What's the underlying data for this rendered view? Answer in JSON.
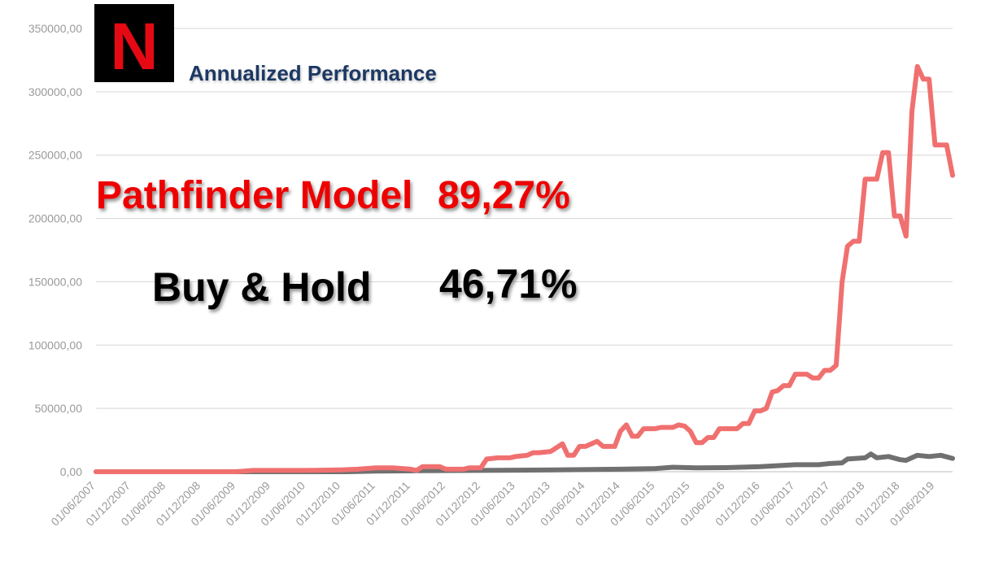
{
  "chart_data": {
    "type": "line",
    "title": "Annualized Performance",
    "ylim": [
      0,
      350000
    ],
    "yticks": [
      "0,00",
      "50000,00",
      "100000,00",
      "150000,00",
      "200000,00",
      "250000,00",
      "300000,00",
      "350000,00"
    ],
    "xticks": [
      "01/06/2007",
      "01/12/2007",
      "01/06/2008",
      "01/12/2008",
      "01/06/2009",
      "01/12/2009",
      "01/06/2010",
      "01/12/2010",
      "01/06/2011",
      "01/12/2011",
      "01/06/2012",
      "01/12/2012",
      "01/06/2013",
      "01/12/2013",
      "01/06/2014",
      "01/12/2014",
      "01/06/2015",
      "01/12/2015",
      "01/06/2016",
      "01/12/2016",
      "01/06/2017",
      "01/12/2017",
      "01/06/2018",
      "01/12/2018",
      "01/06/2019"
    ],
    "grid": true,
    "series": [
      {
        "name": "Pathfinder Model",
        "color": "#f07070",
        "points": [
          [
            "2007-06-01",
            0
          ],
          [
            "2009-06-01",
            0
          ],
          [
            "2009-09-01",
            1000
          ],
          [
            "2010-06-01",
            1000
          ],
          [
            "2010-12-01",
            1500
          ],
          [
            "2011-03-01",
            2000
          ],
          [
            "2011-06-01",
            3000
          ],
          [
            "2011-09-01",
            3000
          ],
          [
            "2011-12-01",
            2000
          ],
          [
            "2012-01-01",
            1000
          ],
          [
            "2012-02-01",
            4000
          ],
          [
            "2012-05-01",
            4000
          ],
          [
            "2012-06-01",
            2000
          ],
          [
            "2012-09-01",
            2000
          ],
          [
            "2012-10-01",
            3000
          ],
          [
            "2012-12-01",
            3000
          ],
          [
            "2013-01-01",
            10000
          ],
          [
            "2013-03-01",
            11000
          ],
          [
            "2013-05-01",
            11000
          ],
          [
            "2013-06-01",
            12000
          ],
          [
            "2013-08-01",
            13000
          ],
          [
            "2013-09-01",
            15000
          ],
          [
            "2013-10-01",
            15000
          ],
          [
            "2013-12-01",
            16000
          ],
          [
            "2014-02-01",
            22000
          ],
          [
            "2014-03-01",
            13000
          ],
          [
            "2014-04-01",
            13000
          ],
          [
            "2014-05-01",
            20000
          ],
          [
            "2014-06-01",
            20000
          ],
          [
            "2014-08-01",
            24000
          ],
          [
            "2014-09-01",
            20000
          ],
          [
            "2014-11-01",
            20000
          ],
          [
            "2014-12-01",
            32000
          ],
          [
            "2015-01-01",
            37000
          ],
          [
            "2015-02-01",
            28000
          ],
          [
            "2015-03-01",
            28000
          ],
          [
            "2015-04-01",
            34000
          ],
          [
            "2015-06-01",
            34000
          ],
          [
            "2015-07-01",
            35000
          ],
          [
            "2015-09-01",
            35000
          ],
          [
            "2015-10-01",
            37000
          ],
          [
            "2015-11-01",
            36000
          ],
          [
            "2015-12-01",
            32000
          ],
          [
            "2016-01-01",
            23000
          ],
          [
            "2016-02-01",
            23000
          ],
          [
            "2016-03-01",
            27000
          ],
          [
            "2016-04-01",
            27000
          ],
          [
            "2016-05-01",
            34000
          ],
          [
            "2016-06-01",
            34000
          ],
          [
            "2016-08-01",
            34000
          ],
          [
            "2016-09-01",
            38000
          ],
          [
            "2016-10-01",
            38000
          ],
          [
            "2016-11-01",
            48000
          ],
          [
            "2016-12-01",
            48000
          ],
          [
            "2017-01-01",
            50000
          ],
          [
            "2017-02-01",
            63000
          ],
          [
            "2017-03-01",
            64000
          ],
          [
            "2017-04-01",
            68000
          ],
          [
            "2017-05-01",
            68000
          ],
          [
            "2017-06-01",
            77000
          ],
          [
            "2017-08-01",
            77000
          ],
          [
            "2017-09-01",
            74000
          ],
          [
            "2017-10-01",
            74000
          ],
          [
            "2017-11-01",
            80000
          ],
          [
            "2017-12-01",
            80000
          ],
          [
            "2018-01-01",
            84000
          ],
          [
            "2018-02-01",
            150000
          ],
          [
            "2018-03-01",
            178000
          ],
          [
            "2018-04-01",
            182000
          ],
          [
            "2018-05-01",
            182000
          ],
          [
            "2018-06-01",
            231000
          ],
          [
            "2018-08-01",
            231000
          ],
          [
            "2018-09-01",
            252000
          ],
          [
            "2018-10-01",
            252000
          ],
          [
            "2018-11-01",
            202000
          ],
          [
            "2018-12-01",
            202000
          ],
          [
            "2019-01-01",
            186000
          ],
          [
            "2019-02-01",
            285000
          ],
          [
            "2019-03-01",
            320000
          ],
          [
            "2019-04-01",
            310000
          ],
          [
            "2019-05-01",
            310000
          ],
          [
            "2019-06-01",
            258000
          ],
          [
            "2019-08-01",
            258000
          ],
          [
            "2019-09-01",
            234000
          ]
        ]
      },
      {
        "name": "Buy & Hold",
        "color": "#707070",
        "points": [
          [
            "2007-06-01",
            0
          ],
          [
            "2011-01-01",
            0
          ],
          [
            "2011-06-01",
            500
          ],
          [
            "2012-01-01",
            800
          ],
          [
            "2012-12-01",
            1000
          ],
          [
            "2013-06-01",
            1200
          ],
          [
            "2014-01-01",
            1500
          ],
          [
            "2014-12-01",
            2000
          ],
          [
            "2015-06-01",
            2500
          ],
          [
            "2015-09-01",
            3500
          ],
          [
            "2016-01-01",
            3000
          ],
          [
            "2016-06-01",
            3200
          ],
          [
            "2016-12-01",
            4000
          ],
          [
            "2017-06-01",
            5500
          ],
          [
            "2017-10-01",
            5500
          ],
          [
            "2017-12-01",
            6500
          ],
          [
            "2018-02-01",
            7000
          ],
          [
            "2018-03-01",
            10000
          ],
          [
            "2018-06-01",
            11000
          ],
          [
            "2018-07-01",
            14000
          ],
          [
            "2018-08-01",
            11000
          ],
          [
            "2018-10-01",
            12000
          ],
          [
            "2018-12-01",
            9500
          ],
          [
            "2019-01-01",
            9000
          ],
          [
            "2019-03-01",
            13000
          ],
          [
            "2019-05-01",
            12000
          ],
          [
            "2019-07-01",
            13000
          ],
          [
            "2019-09-01",
            10500
          ]
        ]
      }
    ]
  },
  "overlay": {
    "logo_letter": "N",
    "model_label": "Pathfinder Model",
    "model_value": "89,27%",
    "bh_label": "Buy & Hold",
    "bh_value": "46,71%",
    "model_color": "#ee0000",
    "bh_color": "#000000"
  }
}
